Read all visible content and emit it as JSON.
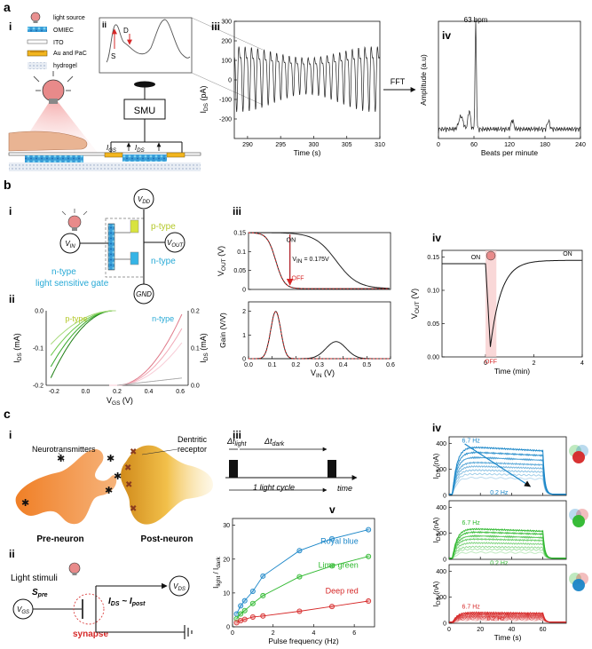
{
  "panel_labels": {
    "a": "a",
    "b": "b",
    "c": "c"
  },
  "sub_labels": {
    "i": "i",
    "ii": "ii",
    "iii": "iii",
    "iv": "iv",
    "v": "v"
  },
  "legend_a": {
    "light_source": "light source",
    "omiec": "OMIEC",
    "ito": "ITO",
    "au_pac": "Au and PaC",
    "hydrogel": "hydrogel"
  },
  "schematic_a": {
    "smu": "SMU",
    "s": "S",
    "d": "D",
    "igs": "I",
    "igs_sub": "GS",
    "ids": "I",
    "ids_sub": "DS",
    "fft": "FFT"
  },
  "schematic_b": {
    "vdd": "V",
    "vdd_sub": "DD",
    "vin": "V",
    "vin_sub": "IN",
    "vout": "V",
    "vout_sub": "OUT",
    "gnd": "GND",
    "ptype": "p-type",
    "ntype": "n-type",
    "gate1": "n-type",
    "gate2": "light sensitive gate"
  },
  "schematic_c": {
    "neurotransmitters": "Neurotransmitters",
    "dendritic": "Dentritic",
    "receptor": "receptor",
    "pre": "Pre-neuron",
    "post": "Post-neuron",
    "light_stimuli": "Light stimuli",
    "spre": "S",
    "spre_sub": "pre",
    "vgs": "V",
    "vgs_sub": "GS",
    "synapse": "synapse",
    "ids_post": "I",
    "ids_post_a": "DS",
    "ids_post_mid": " ~ I",
    "ids_post_b": "post",
    "vds": "V",
    "vds_sub": "DS",
    "dt_light": "Δt",
    "dt_light_sub": "light",
    "dt_dark": "Δt",
    "dt_dark_sub": "dark",
    "cycle": "1 light cycle",
    "time": "time"
  },
  "colors": {
    "royal_blue": "#1a86c8",
    "lime_green": "#2db82d",
    "deep_red": "#d62828",
    "pink": "#f2a8a8",
    "ptype": "#b4c82a",
    "ntype": "#27a9d6",
    "orange": "#ef7d22"
  },
  "chart_data": [
    {
      "id": "a-iii",
      "type": "line",
      "xlabel": "Time (s)",
      "ylabel": "I",
      "ylabel_sub": "DS",
      "ylabel_unit": " (pA)",
      "xlim": [
        288,
        310
      ],
      "ylim": [
        -300,
        300
      ],
      "xticks": [
        290,
        295,
        300,
        305,
        310
      ],
      "yticks": [
        -200,
        -100,
        0,
        100,
        200,
        300
      ],
      "series": [
        {
          "name": "heartbeat",
          "freq_hz": 1.05,
          "amplitude_pa": 180
        }
      ]
    },
    {
      "id": "a-iv",
      "type": "line",
      "xlabel": "Beats per minute",
      "ylabel": "Amplitude (a.u)",
      "xlim": [
        0,
        240
      ],
      "xticks": [
        0,
        60,
        120,
        180,
        240
      ],
      "annotation": "63 bpm",
      "peak_bpm": 63
    },
    {
      "id": "b-ii",
      "type": "line",
      "xlabel": "V",
      "xlabel_sub": "GS",
      "xlabel_unit": " (V)",
      "ylabel_left": "I",
      "ylabel_left_sub": "DS",
      "ylabel_left_unit": " (mA)",
      "ylabel_right": "I",
      "ylabel_right_sub": "DS",
      "ylabel_right_unit": " (mA)",
      "xlim": [
        -0.25,
        0.65
      ],
      "ylim_left": [
        -0.2,
        0
      ],
      "ylim_right": [
        0,
        0.2
      ],
      "xticks": [
        -0.2,
        0.0,
        0.2,
        0.4,
        0.6
      ],
      "yticks_left": [
        -0.2,
        -0.1,
        0.0
      ],
      "yticks_right": [
        0.0,
        0.1,
        0.2
      ],
      "legend": [
        "p-type",
        "n-type"
      ]
    },
    {
      "id": "b-iii-top",
      "type": "line",
      "ylabel": "V",
      "ylabel_sub": "OUT",
      "ylabel_unit": " (V)",
      "xlim": [
        0,
        0.6
      ],
      "ylim": [
        0,
        0.15
      ],
      "yticks": [
        0.0,
        0.05,
        0.1,
        0.15
      ],
      "annotations": {
        "on": "ON",
        "off": "OFF",
        "vin": "V",
        "vin_sub": "IN",
        "vin_val": " = 0.175V"
      }
    },
    {
      "id": "b-iii-bottom",
      "type": "line",
      "xlabel": "V",
      "xlabel_sub": "IN",
      "xlabel_unit": " (V)",
      "ylabel": "Gain (V/V)",
      "xlim": [
        0,
        0.6
      ],
      "ylim": [
        0,
        2.4
      ],
      "xticks": [
        0.0,
        0.1,
        0.2,
        0.3,
        0.4,
        0.5,
        0.6
      ],
      "yticks": [
        0,
        1,
        2
      ]
    },
    {
      "id": "b-iv",
      "type": "line",
      "xlabel": "Time (min)",
      "ylabel": "V",
      "ylabel_sub": "OUT",
      "ylabel_unit": " (V)",
      "xlim": [
        -1.8,
        4
      ],
      "ylim": [
        0,
        0.16
      ],
      "xticks": [
        0,
        2,
        4
      ],
      "yticks": [
        0.0,
        0.05,
        0.1,
        0.15
      ],
      "annotations": {
        "on_left": "ON",
        "on_right": "ON",
        "off": "OFF"
      }
    },
    {
      "id": "c-v",
      "type": "scatter",
      "xlabel": "Pulse frequency (Hz)",
      "ylabel": "I",
      "ylabel_sub": "light",
      "ylabel_mid": " / I",
      "ylabel_sub2": "dark",
      "xlim": [
        0,
        7
      ],
      "ylim": [
        0,
        32
      ],
      "xticks": [
        0,
        2,
        4,
        6
      ],
      "yticks": [
        0,
        10,
        20,
        30
      ],
      "x": [
        0.2,
        0.4,
        0.6,
        1.0,
        1.5,
        3.3,
        4.9,
        6.7
      ],
      "series": [
        {
          "name": "Royal blue",
          "values": [
            3.8,
            6.2,
            7.7,
            10.5,
            15.0,
            22.5,
            26.0,
            28.7
          ]
        },
        {
          "name": "Lime green",
          "values": [
            2.4,
            3.8,
            4.8,
            6.9,
            9.2,
            14.8,
            18.0,
            20.8
          ]
        },
        {
          "name": "Deep red",
          "values": [
            1.2,
            1.8,
            2.2,
            2.9,
            3.2,
            4.6,
            6.0,
            7.6
          ]
        }
      ]
    },
    {
      "id": "c-iv",
      "type": "line",
      "xlabel": "Time (s)",
      "ylabel": "I",
      "ylabel_sub": "DS",
      "ylabel_unit": " (nA)",
      "xlim": [
        0,
        75
      ],
      "xticks": [
        0,
        20,
        40,
        60
      ],
      "ylim": [
        0,
        450
      ],
      "yticks": [
        0,
        200,
        400
      ],
      "freq_labels": {
        "high": "6.7 Hz",
        "low": "0.2 Hz"
      },
      "panels": [
        {
          "name": "Royal blue",
          "max_levels_na": [
            380,
            340,
            300,
            260,
            230,
            200,
            170,
            140
          ]
        },
        {
          "name": "Lime green",
          "max_levels_na": [
            240,
            215,
            185,
            160,
            130,
            100,
            80,
            55
          ]
        },
        {
          "name": "Deep red",
          "max_levels_na": [
            85,
            75,
            65,
            55,
            48,
            40,
            32,
            25
          ]
        }
      ]
    }
  ]
}
